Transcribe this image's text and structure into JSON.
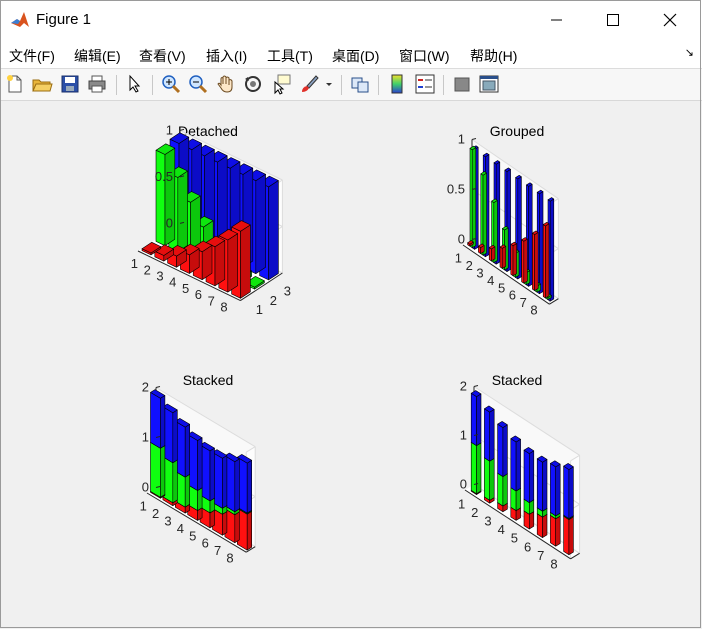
{
  "window": {
    "title": "Figure 1"
  },
  "menu": [
    "文件(F)",
    "编辑(E)",
    "查看(V)",
    "插入(I)",
    "工具(T)",
    "桌面(D)",
    "窗口(W)",
    "帮助(H)"
  ],
  "toolbar": {
    "icons": [
      "new-figure-icon",
      "open-file-icon",
      "save-icon",
      "print-icon",
      "select-arrow-icon",
      "zoom-in-icon",
      "zoom-out-icon",
      "pan-hand-icon",
      "rotate-3d-icon",
      "data-cursor-icon",
      "brush-icon",
      "brush-dropdown-icon",
      "link-plot-icon",
      "colorbar-icon",
      "legend-icon",
      "hide-plot-tools-icon",
      "show-plot-tools-icon"
    ]
  },
  "colors": {
    "red": "#ff1010",
    "green": "#10ff10",
    "blue": "#1010ff",
    "axis": "#262626"
  },
  "chart_data": [
    {
      "type": "bar",
      "style": "detached",
      "title": "Detached",
      "categories": [
        "1",
        "2",
        "3",
        "4",
        "5",
        "6",
        "7",
        "8"
      ],
      "series_index_ticks": [
        "1",
        "2",
        "3"
      ],
      "zlim": [
        0,
        1
      ],
      "zticks": [
        "0",
        "0.5",
        "1"
      ],
      "series": [
        {
          "color": "red",
          "values": [
            0.02,
            0.06,
            0.12,
            0.2,
            0.3,
            0.42,
            0.56,
            0.72
          ]
        },
        {
          "color": "green",
          "values": [
            0.98,
            0.8,
            0.6,
            0.4,
            0.24,
            0.12,
            0.06,
            0.02
          ]
        },
        {
          "color": "blue",
          "values": [
            1,
            1,
            1,
            1,
            1,
            1,
            1,
            1
          ]
        }
      ]
    },
    {
      "type": "bar",
      "style": "grouped",
      "title": "Grouped",
      "categories": [
        "1",
        "2",
        "3",
        "4",
        "5",
        "6",
        "7",
        "8"
      ],
      "zlim": [
        0,
        1
      ],
      "zticks": [
        "0",
        "0.5",
        "1"
      ],
      "series": [
        {
          "color": "red",
          "values": [
            0.02,
            0.06,
            0.12,
            0.2,
            0.3,
            0.42,
            0.56,
            0.72
          ]
        },
        {
          "color": "green",
          "values": [
            0.98,
            0.8,
            0.6,
            0.4,
            0.24,
            0.12,
            0.06,
            0.02
          ]
        },
        {
          "color": "blue",
          "values": [
            1,
            1,
            1,
            1,
            1,
            1,
            1,
            1
          ]
        }
      ]
    },
    {
      "type": "bar",
      "style": "stacked",
      "title": "Stacked",
      "categories": [
        "1",
        "2",
        "3",
        "4",
        "5",
        "6",
        "7",
        "8"
      ],
      "zlim": [
        0,
        2
      ],
      "zticks": [
        "0",
        "1",
        "2"
      ],
      "series": [
        {
          "color": "red",
          "values": [
            0.02,
            0.06,
            0.12,
            0.2,
            0.3,
            0.42,
            0.56,
            0.72
          ]
        },
        {
          "color": "green",
          "values": [
            0.98,
            0.8,
            0.6,
            0.4,
            0.24,
            0.12,
            0.06,
            0.02
          ]
        },
        {
          "color": "blue",
          "values": [
            1,
            1,
            1,
            1,
            1,
            1,
            1,
            1
          ]
        }
      ]
    },
    {
      "type": "bar",
      "style": "stacked-narrow",
      "title": "Stacked",
      "categories": [
        "1",
        "2",
        "3",
        "4",
        "5",
        "6",
        "7",
        "8"
      ],
      "zlim": [
        0,
        2
      ],
      "zticks": [
        "0",
        "1",
        "2"
      ],
      "series": [
        {
          "color": "red",
          "values": [
            0.02,
            0.06,
            0.12,
            0.2,
            0.3,
            0.42,
            0.56,
            0.72
          ]
        },
        {
          "color": "green",
          "values": [
            0.98,
            0.8,
            0.6,
            0.4,
            0.24,
            0.12,
            0.06,
            0.02
          ]
        },
        {
          "color": "blue",
          "values": [
            1,
            1,
            1,
            1,
            1,
            1,
            1,
            1
          ]
        }
      ]
    }
  ]
}
